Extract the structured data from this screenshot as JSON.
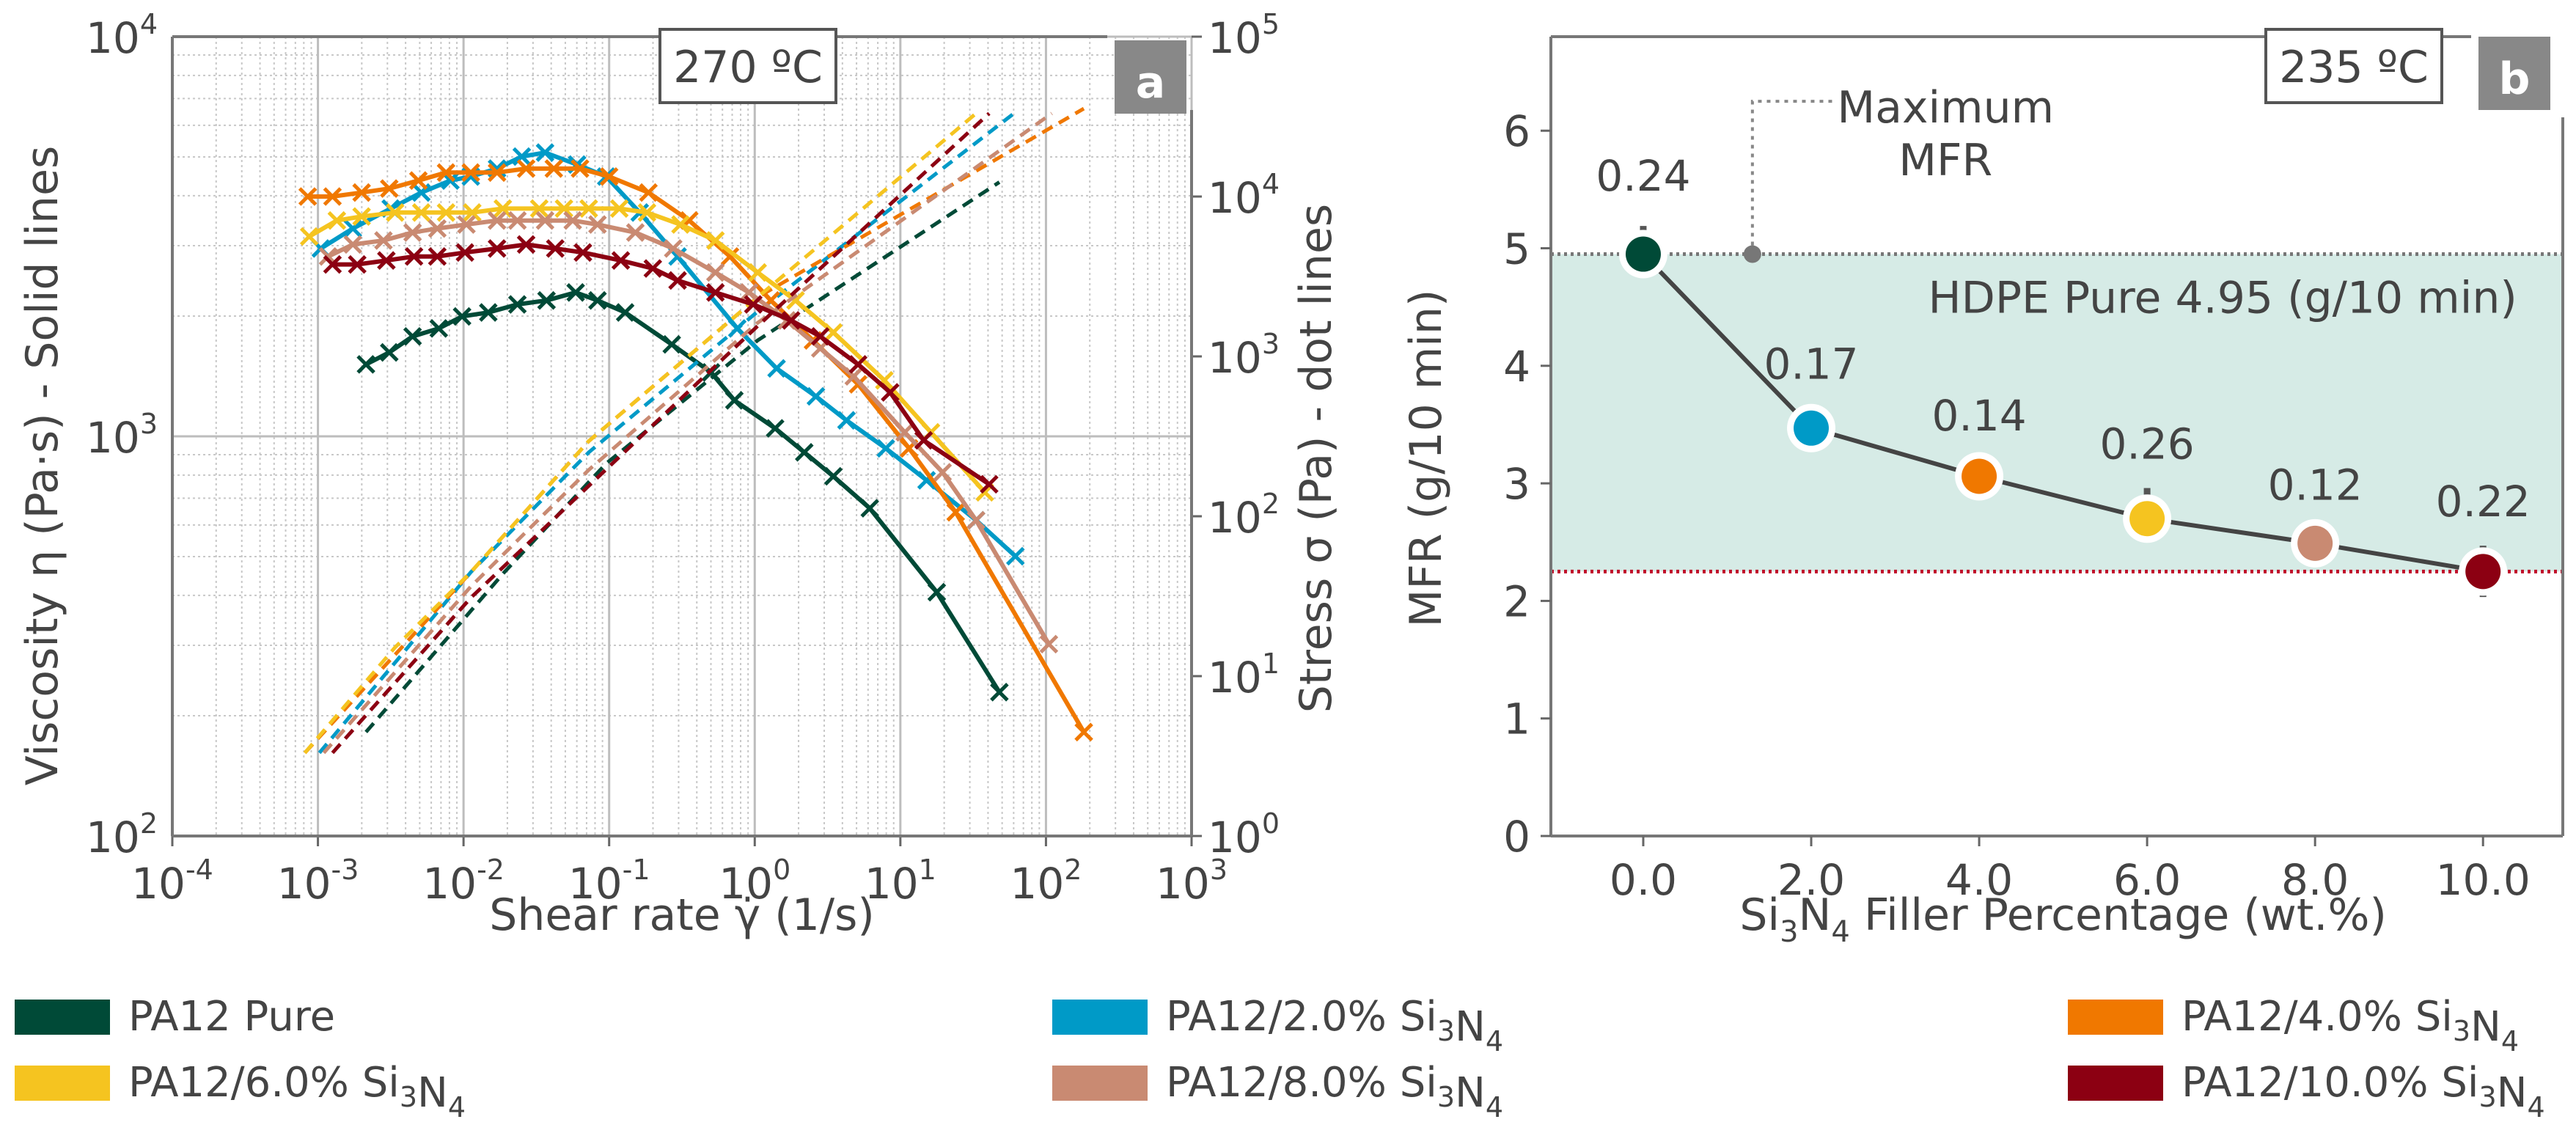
{
  "chart_data": [
    {
      "type": "line",
      "panel_label": "a",
      "annotation": "270 ºC",
      "xlabel": "Shear rate γ̇  (1/s)",
      "ylabel": "Viscosity η (Pa·s) - Solid lines",
      "y2label": "Stress σ (Pa) - dot lines",
      "xscale": "log",
      "yscale": "log",
      "y2scale": "log",
      "x_log10_range": [
        -4,
        3
      ],
      "y_log10_range": [
        2,
        4
      ],
      "y2_log10_range": [
        0,
        5
      ],
      "tick_base": "10",
      "x_tick_exponents": [
        "-4",
        "-3",
        "-2",
        "-1",
        "0",
        "1",
        "2",
        "3"
      ],
      "y_tick_exponents": [
        "2",
        "3",
        "4"
      ],
      "y2_tick_exponents": [
        "0",
        "1",
        "2",
        "3",
        "4",
        "5"
      ],
      "grid": true,
      "note": "values given as log10 of x (1/s), viscosity (Pa·s) and stress (Pa)",
      "series": [
        {
          "name": "PA12 Pure",
          "color": "#004a37",
          "viscosity_log10": {
            "x": [
              -2.67,
              -2.51,
              -2.35,
              -2.17,
              -2.01,
              -1.83,
              -1.63,
              -1.43,
              -1.23,
              -1.08,
              -0.89,
              -0.57,
              -0.3,
              -0.14,
              0.14,
              0.34,
              0.54,
              0.79,
              1.25,
              1.68
            ],
            "y": [
              3.18,
              3.21,
              3.25,
              3.27,
              3.3,
              3.31,
              3.33,
              3.34,
              3.36,
              3.34,
              3.31,
              3.23,
              3.16,
              3.09,
              3.02,
              2.96,
              2.9,
              2.82,
              2.61,
              2.36
            ]
          },
          "stress_log10": {
            "x": [
              -2.67,
              -1.72,
              -1.02,
              0.02,
              1.68
            ],
            "y": [
              0.65,
              1.65,
              2.33,
              3.1,
              4.09
            ]
          }
        },
        {
          "name": "PA12/2.0% ",
          "formula": "Si3N4",
          "color": "#009ac7",
          "viscosity_log10": {
            "x": [
              -2.98,
              -2.76,
              -2.5,
              -2.29,
              -2.09,
              -1.95,
              -1.77,
              -1.6,
              -1.44,
              -1.22,
              -1.02,
              -0.79,
              -0.53,
              -0.12,
              0.15,
              0.42,
              0.63,
              0.9,
              1.18,
              1.52,
              1.79
            ],
            "y": [
              3.47,
              3.52,
              3.57,
              3.61,
              3.64,
              3.65,
              3.67,
              3.7,
              3.71,
              3.68,
              3.65,
              3.56,
              3.45,
              3.27,
              3.17,
              3.1,
              3.04,
              2.97,
              2.89,
              2.79,
              2.7
            ]
          },
          "stress_log10": {
            "x": [
              -2.99,
              -1.95,
              -1.14,
              0.02,
              1.78
            ],
            "y": [
              0.52,
              1.65,
              2.4,
              3.28,
              4.52
            ]
          }
        },
        {
          "name": "PA12/4.0% ",
          "formula": "Si3N4",
          "color": "#f07800",
          "viscosity_log10": {
            "x": [
              -3.07,
              -2.9,
              -2.7,
              -2.51,
              -2.31,
              -2.12,
              -1.95,
              -1.77,
              -1.57,
              -1.38,
              -1.2,
              -1.0,
              -0.73,
              -0.45,
              -0.17,
              0.11,
              0.4,
              0.71,
              1.06,
              1.38,
              2.26
            ],
            "y": [
              3.6,
              3.6,
              3.61,
              3.62,
              3.64,
              3.66,
              3.66,
              3.66,
              3.67,
              3.67,
              3.67,
              3.65,
              3.61,
              3.54,
              3.45,
              3.34,
              3.24,
              3.13,
              2.97,
              2.81,
              2.26
            ]
          },
          "stress_log10": {
            "x": [
              -3.09,
              -1.95,
              -1.14,
              0.02,
              2.26
            ],
            "y": [
              0.52,
              1.65,
              2.47,
              3.37,
              4.55
            ]
          }
        },
        {
          "name": "PA12/6.0% ",
          "formula": "Si3N4",
          "color": "#f5c420",
          "viscosity_log10": {
            "x": [
              -3.06,
              -2.87,
              -2.7,
              -2.47,
              -2.29,
              -2.12,
              -1.94,
              -1.73,
              -1.48,
              -1.31,
              -1.14,
              -0.93,
              -0.74,
              -0.51,
              -0.27,
              0.02,
              0.28,
              0.54,
              0.89,
              1.21,
              1.58
            ],
            "y": [
              3.5,
              3.54,
              3.55,
              3.56,
              3.56,
              3.56,
              3.56,
              3.57,
              3.57,
              3.57,
              3.57,
              3.57,
              3.56,
              3.53,
              3.49,
              3.41,
              3.34,
              3.26,
              3.14,
              3.01,
              2.86
            ]
          },
          "stress_log10": {
            "x": [
              -3.09,
              -2.47,
              -1.95,
              -1.14,
              0.02,
              1.52
            ],
            "y": [
              0.52,
              1.18,
              1.65,
              2.47,
              3.37,
              4.52
            ]
          }
        },
        {
          "name": "PA12/8.0% ",
          "formula": "Si3N4",
          "color": "#c98a72",
          "viscosity_log10": {
            "x": [
              -2.93,
              -2.76,
              -2.55,
              -2.35,
              -2.18,
              -1.98,
              -1.77,
              -1.63,
              -1.44,
              -1.25,
              -1.08,
              -0.82,
              -0.56,
              -0.27,
              -0.04,
              0.22,
              0.45,
              0.68,
              1.03,
              1.29,
              1.52,
              2.02
            ],
            "y": [
              3.45,
              3.48,
              3.49,
              3.51,
              3.52,
              3.53,
              3.54,
              3.54,
              3.54,
              3.54,
              3.53,
              3.51,
              3.47,
              3.41,
              3.36,
              3.29,
              3.22,
              3.15,
              3.01,
              2.91,
              2.79,
              2.48
            ]
          },
          "stress_log10": {
            "x": [
              -2.96,
              -1.95,
              -1.14,
              0.02,
              2.04
            ],
            "y": [
              0.52,
              1.56,
              2.29,
              3.21,
              4.52
            ]
          }
        },
        {
          "name": "PA12/10.0% ",
          "formula": "Si3N4",
          "color": "#8c0012",
          "viscosity_log10": {
            "x": [
              -2.9,
              -2.73,
              -2.53,
              -2.34,
              -2.18,
              -1.99,
              -1.77,
              -1.57,
              -1.37,
              -1.18,
              -0.92,
              -0.7,
              -0.53,
              -0.27,
              -0.01,
              0.25,
              0.45,
              0.71,
              0.93,
              1.16,
              1.61
            ],
            "y": [
              3.43,
              3.43,
              3.44,
              3.45,
              3.45,
              3.46,
              3.47,
              3.48,
              3.47,
              3.46,
              3.44,
              3.42,
              3.39,
              3.36,
              3.33,
              3.29,
              3.25,
              3.18,
              3.11,
              2.99,
              2.88
            ]
          },
          "stress_log10": {
            "x": [
              -2.9,
              -1.95,
              -1.14,
              0.02,
              1.61
            ],
            "y": [
              0.52,
              1.49,
              2.19,
              3.19,
              4.52
            ]
          }
        }
      ]
    },
    {
      "type": "scatter",
      "panel_label": "b",
      "annotation": "235 ºC",
      "xlabel_parts": [
        "Si",
        "3",
        "N",
        "4",
        " Filler Percentage (wt.%)"
      ],
      "ylabel": "MFR (g/10 min)",
      "xlim": [
        -1.1,
        10.95
      ],
      "ylim": [
        0,
        6.8
      ],
      "x_ticks": [
        "0.0",
        "2.0",
        "4.0",
        "6.0",
        "8.0",
        "10.0"
      ],
      "y_ticks": [
        "0",
        "1",
        "2",
        "3",
        "4",
        "5",
        "6"
      ],
      "x": [
        0,
        2,
        4,
        6,
        8,
        10
      ],
      "y": [
        4.95,
        3.47,
        3.06,
        2.7,
        2.49,
        2.25
      ],
      "error": [
        0.24,
        0.17,
        0.14,
        0.26,
        0.12,
        0.22
      ],
      "error_labels": [
        "0.24",
        "0.17",
        "0.14",
        "0.26",
        "0.12",
        "0.22"
      ],
      "colors": [
        "#004a37",
        "#009ac7",
        "#f07800",
        "#f5c420",
        "#c98a72",
        "#8c0012"
      ],
      "reference_upper": 4.95,
      "reference_lower": 2.25,
      "band_color": "#d6ebe6",
      "reference_text": "HDPE Pure 4.95 (g/10 min)",
      "max_annotation": [
        "Maximum",
        "MFR"
      ],
      "max_marker_x": 1.3
    }
  ],
  "legend": [
    {
      "label": "PA12 Pure",
      "formula": "",
      "color": "#004a37"
    },
    {
      "label": "PA12/2.0% ",
      "formula": "Si3N4",
      "color": "#009ac7"
    },
    {
      "label": "PA12/4.0% ",
      "formula": "Si3N4",
      "color": "#f07800"
    },
    {
      "label": "PA12/6.0% ",
      "formula": "Si3N4",
      "color": "#f5c420"
    },
    {
      "label": "PA12/8.0% ",
      "formula": "Si3N4",
      "color": "#c98a72"
    },
    {
      "label": "PA12/10.0% ",
      "formula": "Si3N4",
      "color": "#8c0012"
    }
  ]
}
